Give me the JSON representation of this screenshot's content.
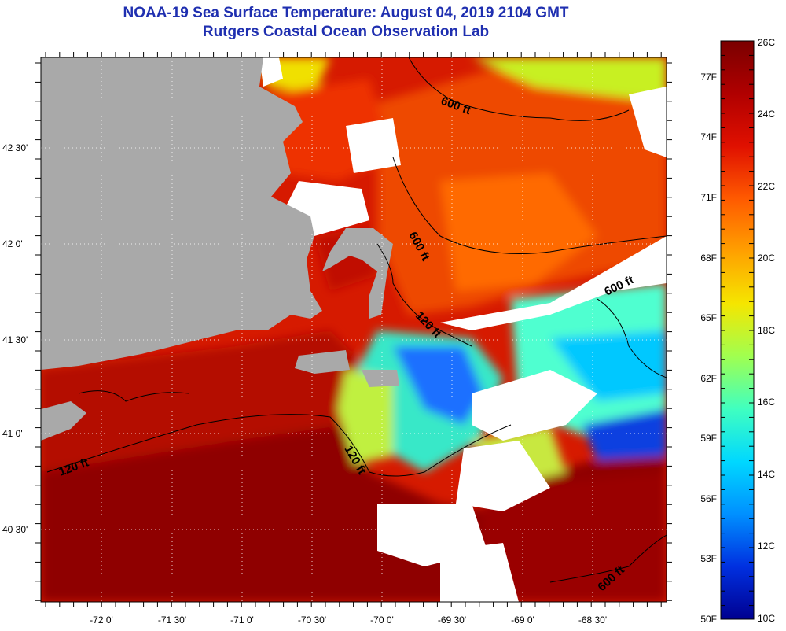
{
  "title": "NOAA-19 Sea Surface Temperature:  August 04, 2019 2104 GMT",
  "subtitle": "Rutgers Coastal Ocean Observation Lab",
  "map": {
    "lon_labels": [
      "-72 0'",
      "-71 30'",
      "-71 0'",
      "-70 30'",
      "-70 0'",
      "-69 30'",
      "-69 0'",
      "-68 30'"
    ],
    "lat_labels": [
      "42 30'",
      "42 0'",
      "41 30'",
      "41 0'",
      "40 30'"
    ],
    "depth_labels": [
      "600 ft",
      "600 ft",
      "600 ft",
      "600 ft",
      "120 ft",
      "120 ft",
      "120 ft"
    ],
    "colors": {
      "land": "#a9a9a9",
      "cloud": "#ffffff"
    }
  },
  "colorbar": {
    "celsius": [
      "26C",
      "24C",
      "22C",
      "20C",
      "18C",
      "16C",
      "14C",
      "12C",
      "10C"
    ],
    "fahrenheit": [
      "77F",
      "74F",
      "71F",
      "68F",
      "65F",
      "62F",
      "59F",
      "56F",
      "53F",
      "50F"
    ],
    "gradient": [
      "#7a0000",
      "#b00000",
      "#e01000",
      "#ff5a00",
      "#ffa000",
      "#f5e600",
      "#a0ff50",
      "#40ffc0",
      "#00d8ff",
      "#0090ff",
      "#0030e0",
      "#000090"
    ]
  }
}
